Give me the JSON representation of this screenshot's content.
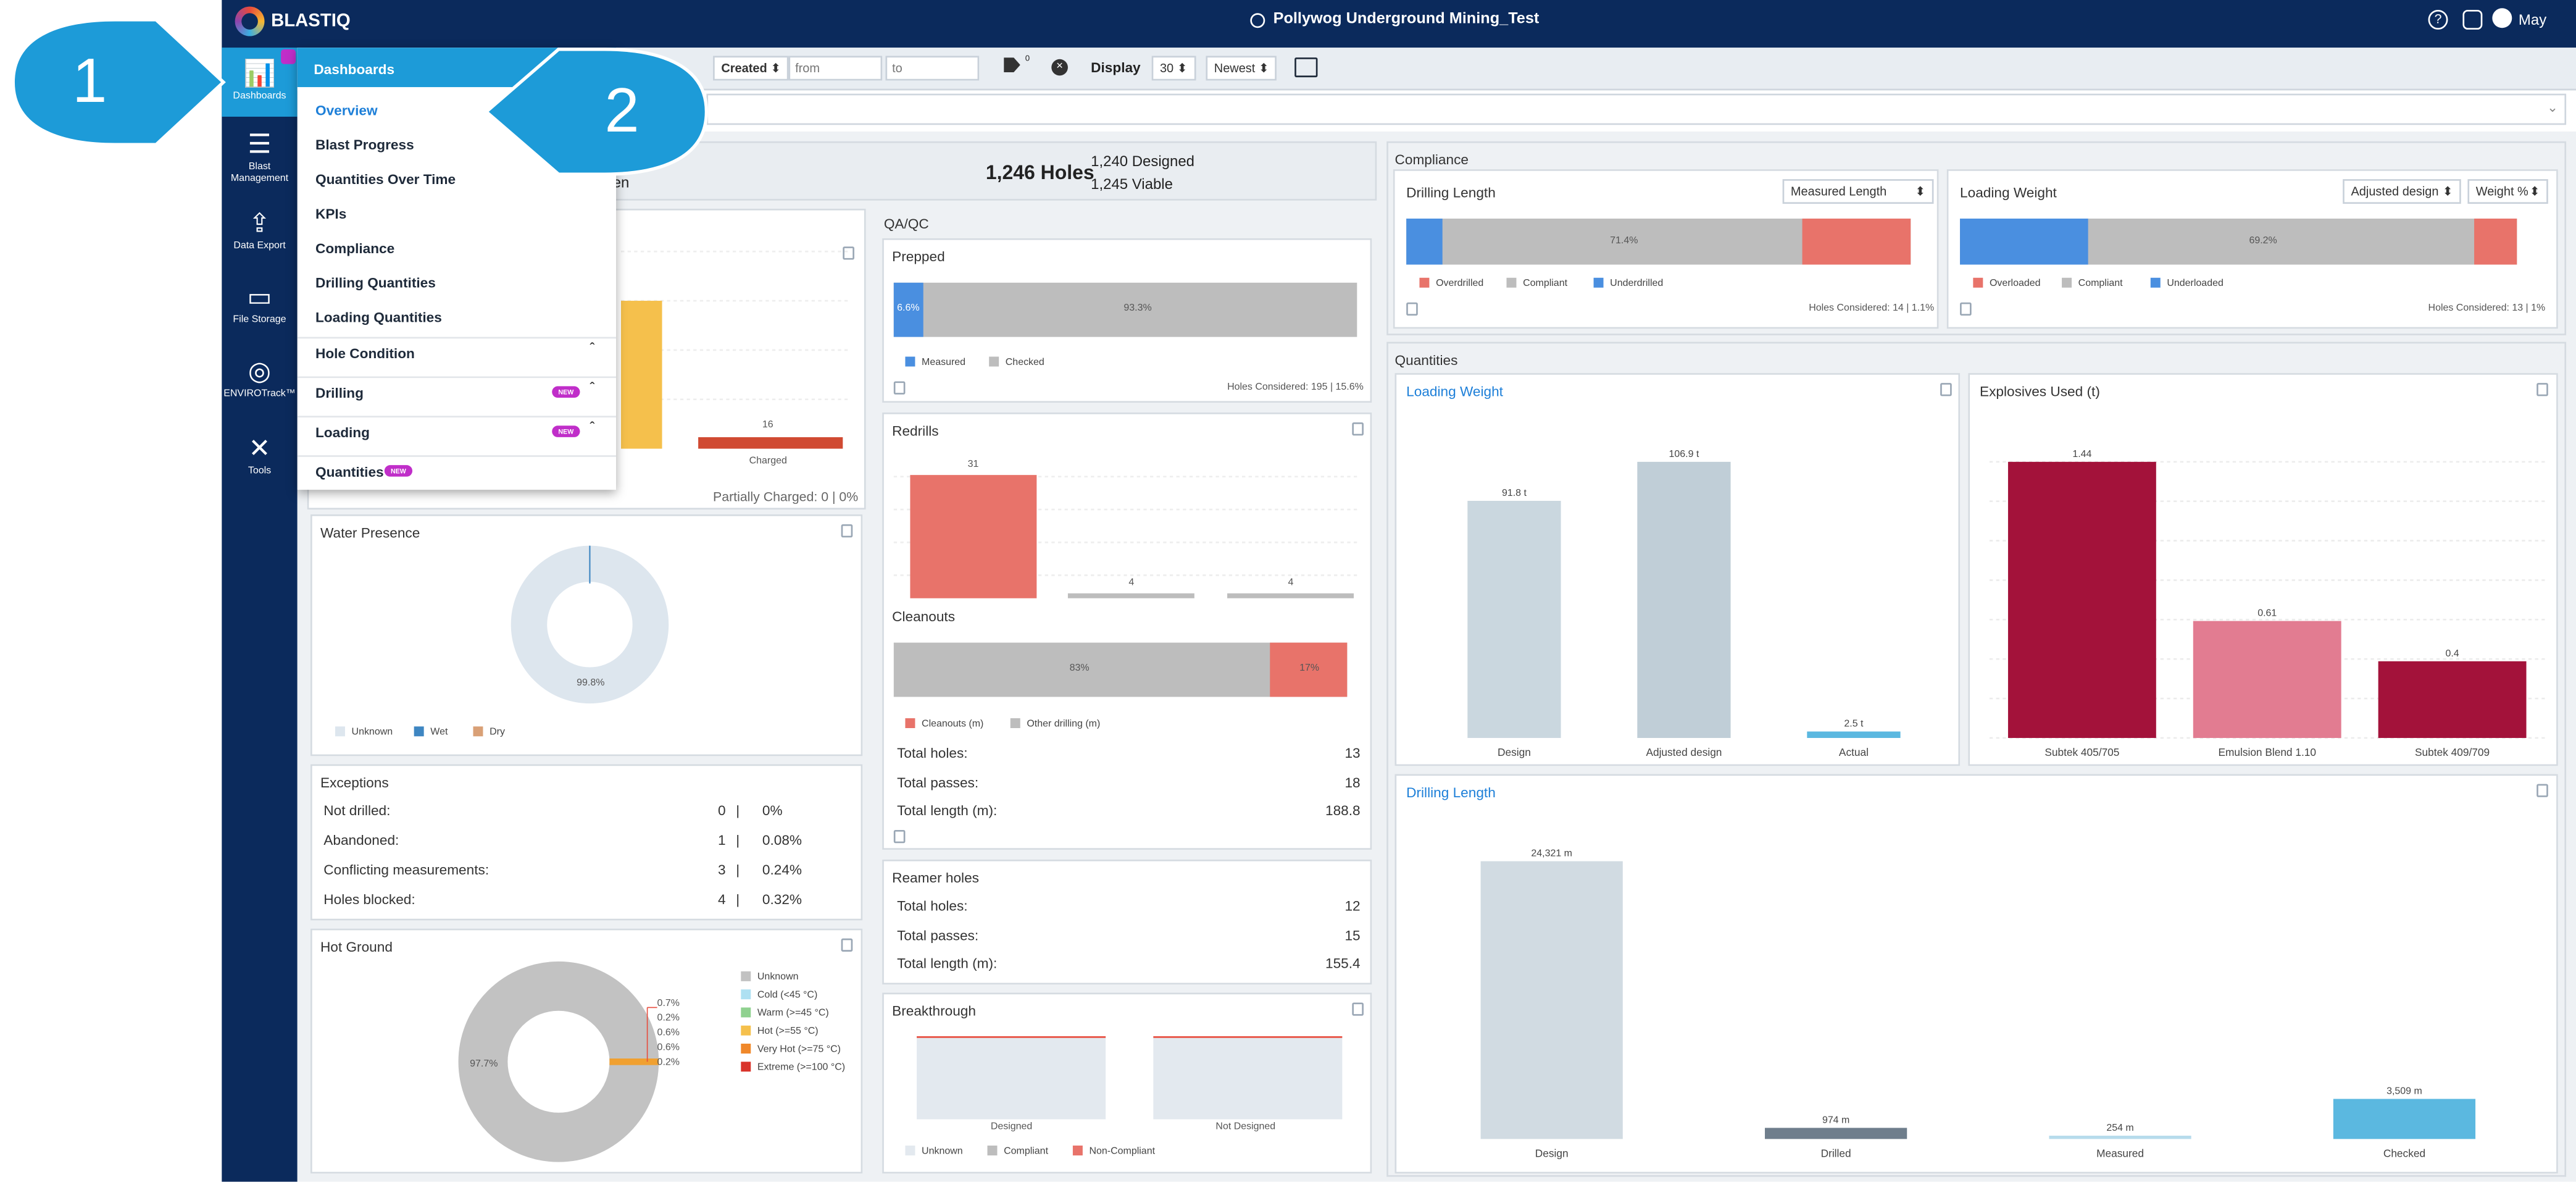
{
  "app": {
    "brand": "BLASTIQ",
    "project": "Pollywog Underground Mining_Test",
    "user": "May"
  },
  "sidebar": {
    "items": [
      {
        "label": "Dashboards"
      },
      {
        "label": "Blast Management"
      },
      {
        "label": "Data Export"
      },
      {
        "label": "File Storage"
      },
      {
        "label": "ENVIROTrack™"
      },
      {
        "label": "Tools"
      }
    ]
  },
  "menu": {
    "title": "Dashboards",
    "items": [
      "Overview",
      "Blast Progress",
      "Quantities Over Time",
      "KPIs",
      "Compliance",
      "Drilling Quantities",
      "Loading Quantities"
    ],
    "groups": [
      {
        "label": "Hole Condition",
        "badge": ""
      },
      {
        "label": "Drilling",
        "badge": "NEW"
      },
      {
        "label": "Loading",
        "badge": "NEW"
      },
      {
        "label": "Quantities",
        "badge": "NEW"
      }
    ]
  },
  "callouts": {
    "one": "1",
    "two": "2"
  },
  "toolbar": {
    "created": "Created",
    "from_placeholder": "from",
    "to_placeholder": "to",
    "tag_count": "0",
    "display": "Display",
    "page_size": "30",
    "sort": "Newest"
  },
  "summary": {
    "holes": "1,246 Holes",
    "designed": "1,240 Designed",
    "viable": "1,245 Viable",
    "partial": "en"
  },
  "status_card": {
    "charged_value": "16",
    "charged_label": "Charged",
    "partially_charged": "Partially Charged: 0 | 0%"
  },
  "water": {
    "title": "Water Presence",
    "label": "99.8%",
    "legend": [
      "Unknown",
      "Wet",
      "Dry"
    ]
  },
  "exceptions": {
    "title": "Exceptions",
    "rows": [
      {
        "label": "Not drilled:",
        "count": "0",
        "pct": "0%"
      },
      {
        "label": "Abandoned:",
        "count": "1",
        "pct": "0.08%"
      },
      {
        "label": "Conflicting measurements:",
        "count": "3",
        "pct": "0.24%"
      },
      {
        "label": "Holes blocked:",
        "count": "4",
        "pct": "0.32%"
      }
    ]
  },
  "hot_ground": {
    "title": "Hot Ground",
    "main_label": "97.7%",
    "slice_labels": [
      "0.7%",
      "0.2%",
      "0.6%",
      "0.6%",
      "0.2%"
    ],
    "legend": [
      "Unknown",
      "Cold (<45 °C)",
      "Warm (>=45 °C)",
      "Hot (>=55 °C)",
      "Very Hot (>=75 °C)",
      "Extreme (>=100 °C)"
    ]
  },
  "qaqc": {
    "title": "QA/QC",
    "prepped": {
      "title": "Prepped",
      "measured": "6.6%",
      "checked": "93.3%",
      "legend": [
        "Measured",
        "Checked"
      ],
      "footer": "Holes Considered: 195 | 15.6%"
    },
    "redrills": {
      "title": "Redrills",
      "values": [
        "31",
        "4",
        "4"
      ]
    },
    "cleanouts": {
      "title": "Cleanouts",
      "a": "83%",
      "b": "17%",
      "legend": [
        "Cleanouts (m)",
        "Other drilling (m)"
      ],
      "rows": [
        {
          "label": "Total holes:",
          "value": "13"
        },
        {
          "label": "Total passes:",
          "value": "18"
        },
        {
          "label": "Total length (m):",
          "value": "188.8"
        }
      ]
    },
    "reamer": {
      "title": "Reamer holes",
      "rows": [
        {
          "label": "Total holes:",
          "value": "12"
        },
        {
          "label": "Total passes:",
          "value": "15"
        },
        {
          "label": "Total length (m):",
          "value": "155.4"
        }
      ]
    },
    "breakthrough": {
      "title": "Breakthrough",
      "cats": [
        "Designed",
        "Not Designed"
      ],
      "legend": [
        "Unknown",
        "Compliant",
        "Non-Compliant"
      ]
    }
  },
  "compliance": {
    "title": "Compliance",
    "drilling": {
      "title": "Drilling Length",
      "select": "Measured Length",
      "center": "71.4%",
      "legend": [
        "Overdrilled",
        "Compliant",
        "Underdrilled"
      ],
      "footer": "Holes Considered: 14 | 1.1%"
    },
    "loading": {
      "title": "Loading Weight",
      "select1": "Adjusted design",
      "select2": "Weight %",
      "center": "69.2%",
      "legend": [
        "Overloaded",
        "Compliant",
        "Underloaded"
      ],
      "footer": "Holes Considered: 13 | 1%"
    }
  },
  "quantities": {
    "title": "Quantities",
    "loading_weight": {
      "title": "Loading Weight"
    },
    "explosives": {
      "title": "Explosives Used (t)"
    },
    "drilling_length": {
      "title": "Drilling Length"
    }
  },
  "chart_data": [
    {
      "type": "bar",
      "title": "Loading Weight",
      "categories": [
        "Design",
        "Adjusted design",
        "Actual"
      ],
      "values": [
        91.8,
        106.9,
        2.5
      ],
      "value_labels": [
        "91.8 t",
        "106.9 t",
        "2.5 t"
      ]
    },
    {
      "type": "bar",
      "title": "Explosives Used (t)",
      "categories": [
        "Subtek 405/705",
        "Emulsion Blend 1.10",
        "Subtek 409/709"
      ],
      "values": [
        1.44,
        0.61,
        0.4
      ],
      "value_labels": [
        "1.44",
        "0.61",
        "0.4"
      ]
    },
    {
      "type": "bar",
      "title": "Drilling Length",
      "categories": [
        "Design",
        "Drilled",
        "Measured",
        "Checked"
      ],
      "values": [
        24321,
        974,
        254,
        3509
      ],
      "value_labels": [
        "24,321 m",
        "974 m",
        "254 m",
        "3,509 m"
      ]
    }
  ],
  "colors": {
    "navy": "#0b2a5c",
    "accent": "#1d9bd8",
    "red": "#e8736a",
    "gray": "#bdbdbd",
    "blue": "#4a8fe0",
    "crimson": "#a3123a",
    "pink": "#e27c91",
    "steel": "#c8d5dd",
    "sky": "#5bb8e0"
  }
}
